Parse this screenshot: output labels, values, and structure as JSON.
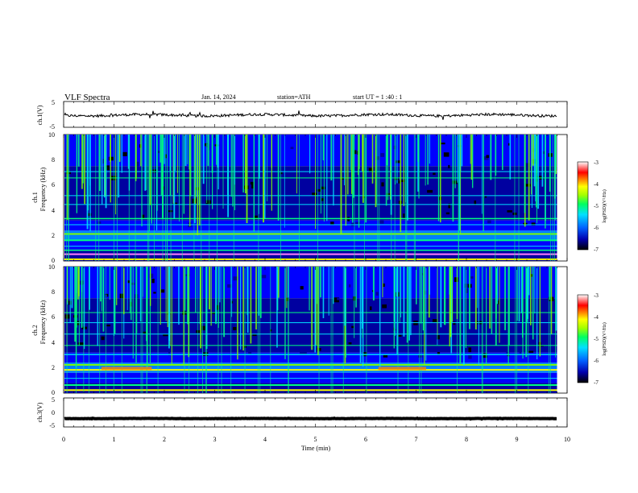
{
  "header": {
    "title": "VLF  Spectra",
    "date": "Jan.  14,  2024",
    "station": "station=ATH",
    "start_ut": "start  UT  =    1  :40 : 1"
  },
  "chart_data": [
    {
      "type": "line",
      "name": "ch1-waveform",
      "ylabel": "ch.1(V)",
      "ylim": [
        -5,
        5
      ],
      "y_ticks": [
        "5",
        "-5"
      ],
      "xlim": [
        0,
        10
      ],
      "x_end": 9.8,
      "baseline": -0.3,
      "color": "#000000"
    },
    {
      "type": "heatmap",
      "name": "ch1-spectrogram",
      "ylabel_top": "ch.1",
      "ylabel": "Frequency  (kHz)",
      "ylim": [
        0,
        10
      ],
      "y_ticks": [
        "0",
        "2",
        "4",
        "6",
        "8",
        "10"
      ],
      "xlim": [
        0,
        10
      ],
      "x_end": 9.8,
      "colorbar": {
        "label": "log(PSD)(V²/Hz)",
        "range": [
          -7,
          -3
        ],
        "ticks": [
          "-3",
          "-4",
          "-5",
          "-6",
          "-7"
        ]
      }
    },
    {
      "type": "heatmap",
      "name": "ch2-spectrogram",
      "ylabel_top": "ch.2",
      "ylabel": "Frequency  (kHz)",
      "ylim": [
        0,
        10
      ],
      "y_ticks": [
        "0",
        "2",
        "4",
        "6",
        "8",
        "10"
      ],
      "xlim": [
        0,
        10
      ],
      "x_end": 9.8,
      "colorbar": {
        "label": "log(PSD)(V²/Hz)",
        "range": [
          -7,
          -3
        ],
        "ticks": [
          "-3",
          "-4",
          "-5",
          "-6",
          "-7"
        ]
      }
    },
    {
      "type": "line",
      "name": "ch3-waveform",
      "ylabel": "ch.3(V)",
      "ylim": [
        -5,
        5
      ],
      "y_ticks": [
        "5",
        "0",
        "-5"
      ],
      "xlim": [
        0,
        10
      ],
      "x_end": 9.8,
      "baseline": -2.1,
      "color": "#000000"
    }
  ],
  "x_axis": {
    "label": "Time  (min)",
    "ticks": [
      "0",
      "1",
      "2",
      "3",
      "4",
      "5",
      "6",
      "7",
      "8",
      "9",
      "10"
    ]
  },
  "colormap": [
    "#000000",
    "#0000a0",
    "#0000ff",
    "#0080ff",
    "#00e0ff",
    "#00ff80",
    "#80ff00",
    "#ffff00",
    "#ff8000",
    "#ff0000",
    "#ff80ff",
    "#ffffff"
  ]
}
